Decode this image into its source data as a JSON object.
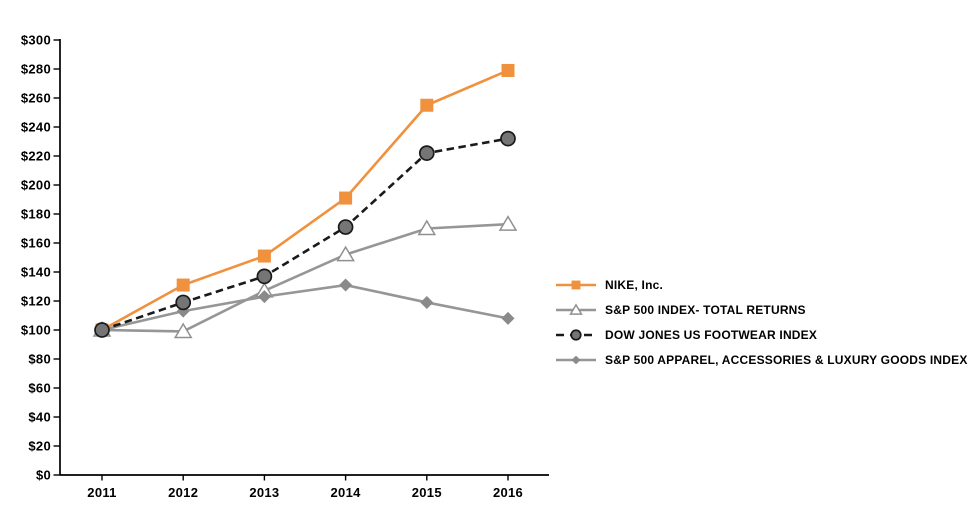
{
  "chart_data": {
    "type": "line",
    "title": "",
    "xlabel": "",
    "ylabel": "",
    "x_categories": [
      "2011",
      "2012",
      "2013",
      "2014",
      "2015",
      "2016"
    ],
    "ylim": [
      0,
      300
    ],
    "y_tick_step": 20,
    "y_tick_labels": [
      "$0",
      "$20",
      "$40",
      "$60",
      "$80",
      "$100",
      "$120",
      "$140",
      "$160",
      "$180",
      "$200",
      "$220",
      "$240",
      "$260",
      "$280",
      "$300"
    ],
    "grid": false,
    "legend_position": "right",
    "draw_order": [
      0,
      1,
      3,
      2
    ],
    "series": [
      {
        "name": "NIKE, Inc.",
        "values": [
          100,
          131,
          151,
          191,
          255,
          279
        ],
        "color": "#F0913D",
        "marker": "square",
        "marker_fill": "#F0913D",
        "line_style": "solid"
      },
      {
        "name": "S&P 500 INDEX- TOTAL RETURNS",
        "values": [
          100,
          99,
          127,
          152,
          170,
          173
        ],
        "color": "#969696",
        "marker": "triangle-open",
        "marker_fill": "#FFFFFF",
        "line_style": "solid"
      },
      {
        "name": "DOW JONES US FOOTWEAR INDEX",
        "values": [
          100,
          119,
          137,
          171,
          222,
          232
        ],
        "color": "#1A1A1A",
        "marker": "circle",
        "marker_fill": "#757575",
        "line_style": "dashed"
      },
      {
        "name": "S&P 500 APPAREL, ACCESSORIES & LUXURY GOODS INDEX",
        "values": [
          100,
          113,
          123,
          131,
          119,
          108
        ],
        "color": "#969696",
        "marker": "diamond",
        "marker_fill": "#8A8A8A",
        "line_style": "solid"
      }
    ]
  }
}
